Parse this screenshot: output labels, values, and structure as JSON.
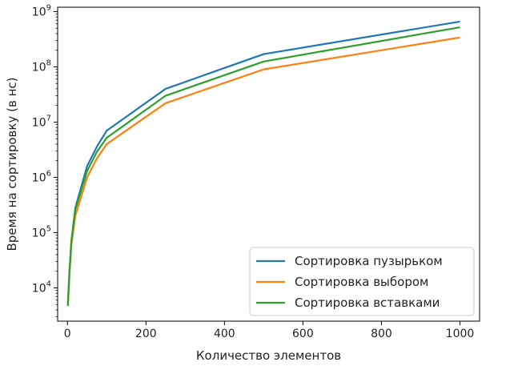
{
  "chart_data": {
    "type": "line",
    "xlabel": "Количество элементов",
    "ylabel": "Время на сортировку (в нс)",
    "xlim": [
      -25,
      1050
    ],
    "ylim": [
      2500,
      1200000000
    ],
    "yscale": "log",
    "grid": false,
    "legend_position": "bottom-right",
    "x_ticks": [
      0,
      200,
      400,
      600,
      800,
      1000
    ],
    "y_ticks": [
      {
        "value": 10000,
        "base": "10",
        "exp": "4"
      },
      {
        "value": 100000,
        "base": "10",
        "exp": "5"
      },
      {
        "value": 1000000,
        "base": "10",
        "exp": "6"
      },
      {
        "value": 10000000,
        "base": "10",
        "exp": "7"
      },
      {
        "value": 100000000,
        "base": "10",
        "exp": "8"
      },
      {
        "value": 1000000000,
        "base": "10",
        "exp": "9"
      }
    ],
    "x": [
      1,
      5,
      10,
      20,
      50,
      75,
      100,
      250,
      500,
      1000
    ],
    "series": [
      {
        "name": "Сортировка пузырьком",
        "color": "#1f77b4",
        "values": [
          5000,
          20000,
          70000,
          280000,
          1600000,
          3600000,
          7000000,
          40000000,
          170000000,
          660000000
        ]
      },
      {
        "name": "Сортировка выбором",
        "color": "#ff7f0e",
        "values": [
          4800,
          17000,
          60000,
          200000,
          1000000,
          2200000,
          4000000,
          22000000,
          90000000,
          340000000
        ]
      },
      {
        "name": "Сортировка вставками",
        "color": "#2ca02c",
        "values": [
          4700,
          18000,
          70000,
          260000,
          1300000,
          2900000,
          5200000,
          30000000,
          125000000,
          520000000
        ]
      }
    ]
  }
}
